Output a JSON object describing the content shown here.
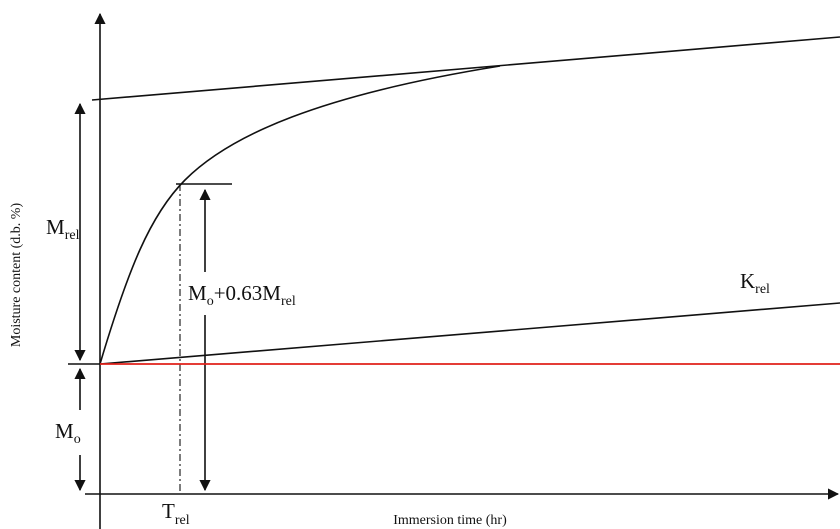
{
  "y_axis_label": "Moisture content (d.b. %)",
  "x_axis_label": "Immersion time (hr)",
  "labels": {
    "m_rel": {
      "main": "M",
      "sub": "rel"
    },
    "m_o": {
      "main": "M",
      "sub": "o"
    },
    "m_o_063": {
      "main": "M",
      "sub": "o",
      "rest": "+0.63M",
      "sub2": "rel"
    },
    "k_rel": {
      "main": "K",
      "sub": "rel"
    },
    "t_rel": {
      "main": "T",
      "sub": "rel"
    }
  }
}
